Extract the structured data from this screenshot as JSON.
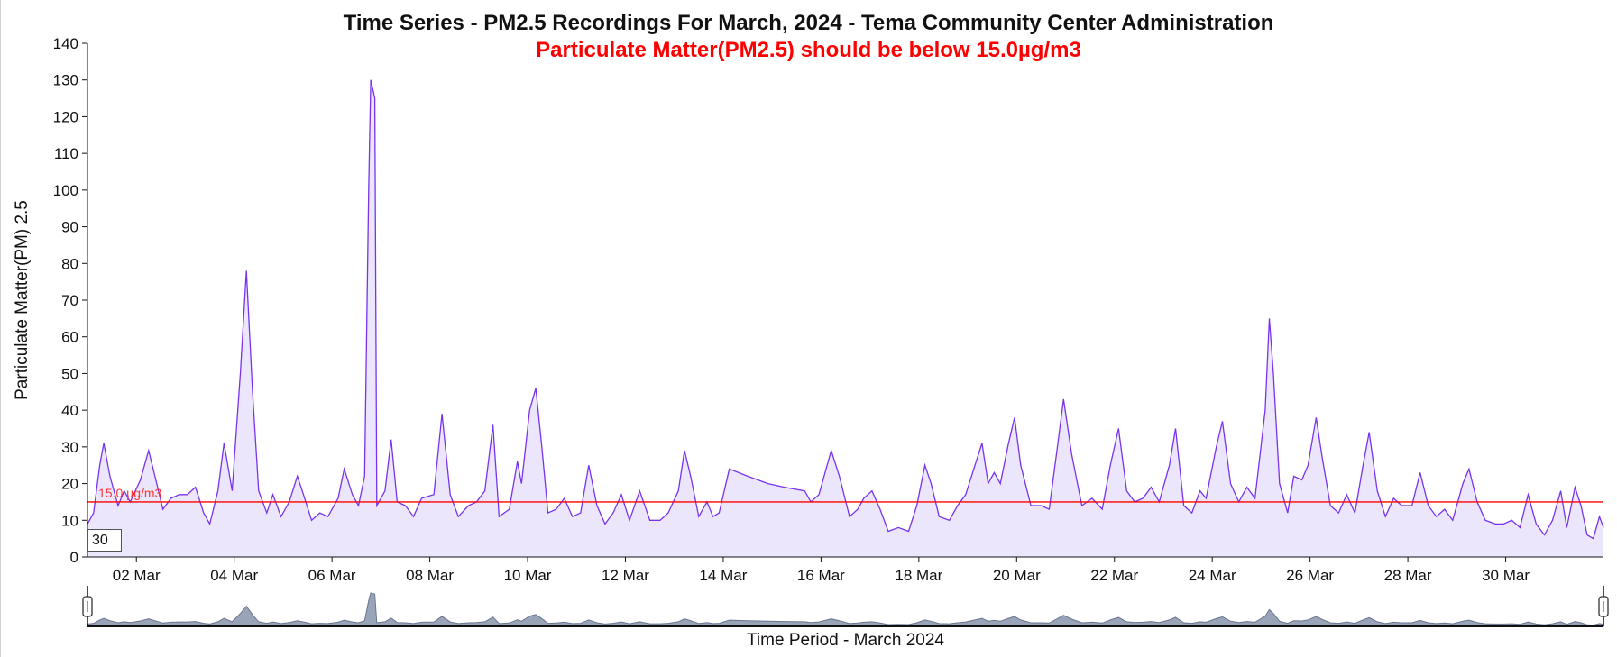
{
  "chart": {
    "title": "Time Series - PM2.5 Recordings For March, 2024 - Tema Community Center Administration",
    "subtitle": "Particulate Matter(PM2.5) should be below 15.0µg/m3",
    "period_input": "30",
    "threshold_label": "15.0 µg/m3",
    "xlabel_bottom": "Time Period - March 2024"
  },
  "colors": {
    "line": "#7733ee",
    "area": "#ece6fc",
    "threshold": "#ff0000",
    "brush_fill": "#9aa4b8",
    "brush_stroke": "#6a7590"
  },
  "chart_data": {
    "type": "area",
    "title": "Time Series - PM2.5 Recordings For March, 2024 - Tema Community Center Administration",
    "subtitle": "Particulate Matter(PM2.5) should be below 15.0µg/m3",
    "xlabel": "Time Period - March 2024",
    "ylabel": "Particulate Matter(PM) 2.5",
    "x_ticks": [
      "02 Mar",
      "04 Mar",
      "06 Mar",
      "08 Mar",
      "10 Mar",
      "12 Mar",
      "14 Mar",
      "16 Mar",
      "18 Mar",
      "20 Mar",
      "22 Mar",
      "24 Mar",
      "26 Mar",
      "28 Mar",
      "30 Mar"
    ],
    "y_ticks": [
      0,
      10,
      20,
      30,
      40,
      50,
      60,
      70,
      80,
      90,
      100,
      110,
      120,
      130,
      140
    ],
    "ylim": [
      0,
      140
    ],
    "xlim": [
      "2024-03-01",
      "2024-04-01"
    ],
    "threshold": 15.0,
    "grid": false,
    "series": [
      {
        "values": [
          [
            "2024-03-01 00:00",
            9
          ],
          [
            "2024-03-01 03:00",
            12
          ],
          [
            "2024-03-01 06:00",
            25
          ],
          [
            "2024-03-01 08:00",
            31
          ],
          [
            "2024-03-01 11:00",
            22
          ],
          [
            "2024-03-01 15:00",
            14
          ],
          [
            "2024-03-01 18:00",
            18
          ],
          [
            "2024-03-01 21:00",
            15
          ],
          [
            "2024-03-02 02:00",
            21
          ],
          [
            "2024-03-02 06:00",
            29
          ],
          [
            "2024-03-02 10:00",
            20
          ],
          [
            "2024-03-02 13:00",
            13
          ],
          [
            "2024-03-02 17:00",
            16
          ],
          [
            "2024-03-02 21:00",
            17
          ],
          [
            "2024-03-03 01:00",
            17
          ],
          [
            "2024-03-03 05:00",
            19
          ],
          [
            "2024-03-03 09:00",
            12
          ],
          [
            "2024-03-03 12:00",
            9
          ],
          [
            "2024-03-03 16:00",
            18
          ],
          [
            "2024-03-03 19:00",
            31
          ],
          [
            "2024-03-03 23:00",
            18
          ],
          [
            "2024-03-04 03:00",
            50
          ],
          [
            "2024-03-04 06:00",
            78
          ],
          [
            "2024-03-04 09:00",
            45
          ],
          [
            "2024-03-04 12:00",
            18
          ],
          [
            "2024-03-04 16:00",
            12
          ],
          [
            "2024-03-04 19:00",
            17
          ],
          [
            "2024-03-04 23:00",
            11
          ],
          [
            "2024-03-05 03:00",
            15
          ],
          [
            "2024-03-05 07:00",
            22
          ],
          [
            "2024-03-05 10:00",
            17
          ],
          [
            "2024-03-05 14:00",
            10
          ],
          [
            "2024-03-05 18:00",
            12
          ],
          [
            "2024-03-05 22:00",
            11
          ],
          [
            "2024-03-06 03:00",
            16
          ],
          [
            "2024-03-06 06:00",
            24
          ],
          [
            "2024-03-06 10:00",
            17
          ],
          [
            "2024-03-06 13:00",
            14
          ],
          [
            "2024-03-06 16:00",
            22
          ],
          [
            "2024-03-06 18:00",
            100
          ],
          [
            "2024-03-06 19:00",
            130
          ],
          [
            "2024-03-06 21:00",
            125
          ],
          [
            "2024-03-06 22:00",
            14
          ],
          [
            "2024-03-07 02:00",
            18
          ],
          [
            "2024-03-07 05:00",
            32
          ],
          [
            "2024-03-07 08:00",
            15
          ],
          [
            "2024-03-07 12:00",
            14
          ],
          [
            "2024-03-07 16:00",
            11
          ],
          [
            "2024-03-07 20:00",
            16
          ],
          [
            "2024-03-08 02:00",
            17
          ],
          [
            "2024-03-08 06:00",
            39
          ],
          [
            "2024-03-08 10:00",
            17
          ],
          [
            "2024-03-08 14:00",
            11
          ],
          [
            "2024-03-08 19:00",
            14
          ],
          [
            "2024-03-08 23:00",
            15
          ],
          [
            "2024-03-09 03:00",
            18
          ],
          [
            "2024-03-09 07:00",
            36
          ],
          [
            "2024-03-09 10:00",
            11
          ],
          [
            "2024-03-09 15:00",
            13
          ],
          [
            "2024-03-09 19:00",
            26
          ],
          [
            "2024-03-09 21:00",
            20
          ],
          [
            "2024-03-10 01:00",
            40
          ],
          [
            "2024-03-10 04:00",
            46
          ],
          [
            "2024-03-10 07:00",
            30
          ],
          [
            "2024-03-10 10:00",
            12
          ],
          [
            "2024-03-10 14:00",
            13
          ],
          [
            "2024-03-10 18:00",
            16
          ],
          [
            "2024-03-10 22:00",
            11
          ],
          [
            "2024-03-11 02:00",
            12
          ],
          [
            "2024-03-11 06:00",
            25
          ],
          [
            "2024-03-11 10:00",
            14
          ],
          [
            "2024-03-11 14:00",
            9
          ],
          [
            "2024-03-11 18:00",
            12
          ],
          [
            "2024-03-11 22:00",
            17
          ],
          [
            "2024-03-12 02:00",
            10
          ],
          [
            "2024-03-12 07:00",
            18
          ],
          [
            "2024-03-12 12:00",
            10
          ],
          [
            "2024-03-12 17:00",
            10
          ],
          [
            "2024-03-12 21:00",
            12
          ],
          [
            "2024-03-13 02:00",
            18
          ],
          [
            "2024-03-13 05:00",
            29
          ],
          [
            "2024-03-13 08:00",
            22
          ],
          [
            "2024-03-13 12:00",
            11
          ],
          [
            "2024-03-13 16:00",
            15
          ],
          [
            "2024-03-13 19:00",
            11
          ],
          [
            "2024-03-13 22:00",
            12
          ],
          [
            "2024-03-14 03:00",
            24
          ],
          [
            "2024-03-14 12:00",
            22
          ],
          [
            "2024-03-14 22:00",
            20
          ],
          [
            "2024-03-15 06:00",
            19
          ],
          [
            "2024-03-15 16:00",
            18
          ],
          [
            "2024-03-15 19:00",
            15
          ],
          [
            "2024-03-15 23:00",
            17
          ],
          [
            "2024-03-16 05:00",
            29
          ],
          [
            "2024-03-16 09:00",
            22
          ],
          [
            "2024-03-16 14:00",
            11
          ],
          [
            "2024-03-16 18:00",
            13
          ],
          [
            "2024-03-16 21:00",
            16
          ],
          [
            "2024-03-17 01:00",
            18
          ],
          [
            "2024-03-17 05:00",
            13
          ],
          [
            "2024-03-17 09:00",
            7
          ],
          [
            "2024-03-17 14:00",
            8
          ],
          [
            "2024-03-17 19:00",
            7
          ],
          [
            "2024-03-17 23:00",
            14
          ],
          [
            "2024-03-18 03:00",
            25
          ],
          [
            "2024-03-18 06:00",
            20
          ],
          [
            "2024-03-18 10:00",
            11
          ],
          [
            "2024-03-18 15:00",
            10
          ],
          [
            "2024-03-18 19:00",
            14
          ],
          [
            "2024-03-18 23:00",
            17
          ],
          [
            "2024-03-19 03:00",
            24
          ],
          [
            "2024-03-19 07:00",
            31
          ],
          [
            "2024-03-19 10:00",
            20
          ],
          [
            "2024-03-19 13:00",
            23
          ],
          [
            "2024-03-19 16:00",
            20
          ],
          [
            "2024-03-19 20:00",
            31
          ],
          [
            "2024-03-19 23:00",
            38
          ],
          [
            "2024-03-20 02:00",
            25
          ],
          [
            "2024-03-20 07:00",
            14
          ],
          [
            "2024-03-20 12:00",
            14
          ],
          [
            "2024-03-20 16:00",
            13
          ],
          [
            "2024-03-20 20:00",
            30
          ],
          [
            "2024-03-20 23:00",
            43
          ],
          [
            "2024-03-21 03:00",
            28
          ],
          [
            "2024-03-21 08:00",
            14
          ],
          [
            "2024-03-21 13:00",
            16
          ],
          [
            "2024-03-21 18:00",
            13
          ],
          [
            "2024-03-21 22:00",
            25
          ],
          [
            "2024-03-22 02:00",
            35
          ],
          [
            "2024-03-22 06:00",
            18
          ],
          [
            "2024-03-22 10:00",
            15
          ],
          [
            "2024-03-22 14:00",
            16
          ],
          [
            "2024-03-22 18:00",
            19
          ],
          [
            "2024-03-22 22:00",
            15
          ],
          [
            "2024-03-23 03:00",
            25
          ],
          [
            "2024-03-23 06:00",
            35
          ],
          [
            "2024-03-23 10:00",
            14
          ],
          [
            "2024-03-23 14:00",
            12
          ],
          [
            "2024-03-23 18:00",
            18
          ],
          [
            "2024-03-23 21:00",
            16
          ],
          [
            "2024-03-24 02:00",
            30
          ],
          [
            "2024-03-24 05:00",
            37
          ],
          [
            "2024-03-24 09:00",
            20
          ],
          [
            "2024-03-24 13:00",
            15
          ],
          [
            "2024-03-24 17:00",
            19
          ],
          [
            "2024-03-24 21:00",
            16
          ],
          [
            "2024-03-25 02:00",
            40
          ],
          [
            "2024-03-25 04:00",
            65
          ],
          [
            "2024-03-25 06:00",
            50
          ],
          [
            "2024-03-25 09:00",
            20
          ],
          [
            "2024-03-25 13:00",
            12
          ],
          [
            "2024-03-25 16:00",
            22
          ],
          [
            "2024-03-25 20:00",
            21
          ],
          [
            "2024-03-25 23:00",
            25
          ],
          [
            "2024-03-26 03:00",
            38
          ],
          [
            "2024-03-26 06:00",
            27
          ],
          [
            "2024-03-26 10:00",
            14
          ],
          [
            "2024-03-26 14:00",
            12
          ],
          [
            "2024-03-26 18:00",
            17
          ],
          [
            "2024-03-26 22:00",
            12
          ],
          [
            "2024-03-27 02:00",
            25
          ],
          [
            "2024-03-27 05:00",
            34
          ],
          [
            "2024-03-27 09:00",
            18
          ],
          [
            "2024-03-27 13:00",
            11
          ],
          [
            "2024-03-27 17:00",
            16
          ],
          [
            "2024-03-27 21:00",
            14
          ],
          [
            "2024-03-28 02:00",
            14
          ],
          [
            "2024-03-28 06:00",
            23
          ],
          [
            "2024-03-28 10:00",
            14
          ],
          [
            "2024-03-28 14:00",
            11
          ],
          [
            "2024-03-28 18:00",
            13
          ],
          [
            "2024-03-28 22:00",
            10
          ],
          [
            "2024-03-29 03:00",
            20
          ],
          [
            "2024-03-29 06:00",
            24
          ],
          [
            "2024-03-29 10:00",
            15
          ],
          [
            "2024-03-29 14:00",
            10
          ],
          [
            "2024-03-29 19:00",
            9
          ],
          [
            "2024-03-29 23:00",
            9
          ],
          [
            "2024-03-30 03:00",
            10
          ],
          [
            "2024-03-30 07:00",
            8
          ],
          [
            "2024-03-30 11:00",
            17
          ],
          [
            "2024-03-30 15:00",
            9
          ],
          [
            "2024-03-30 19:00",
            6
          ],
          [
            "2024-03-30 23:00",
            10
          ],
          [
            "2024-03-31 03:00",
            18
          ],
          [
            "2024-03-31 06:00",
            8
          ],
          [
            "2024-03-31 10:00",
            19
          ],
          [
            "2024-03-31 13:00",
            14
          ],
          [
            "2024-03-31 16:00",
            6
          ],
          [
            "2024-03-31 19:00",
            5
          ],
          [
            "2024-03-31 22:00",
            11
          ],
          [
            "2024-04-01 00:00",
            8
          ]
        ]
      }
    ]
  }
}
